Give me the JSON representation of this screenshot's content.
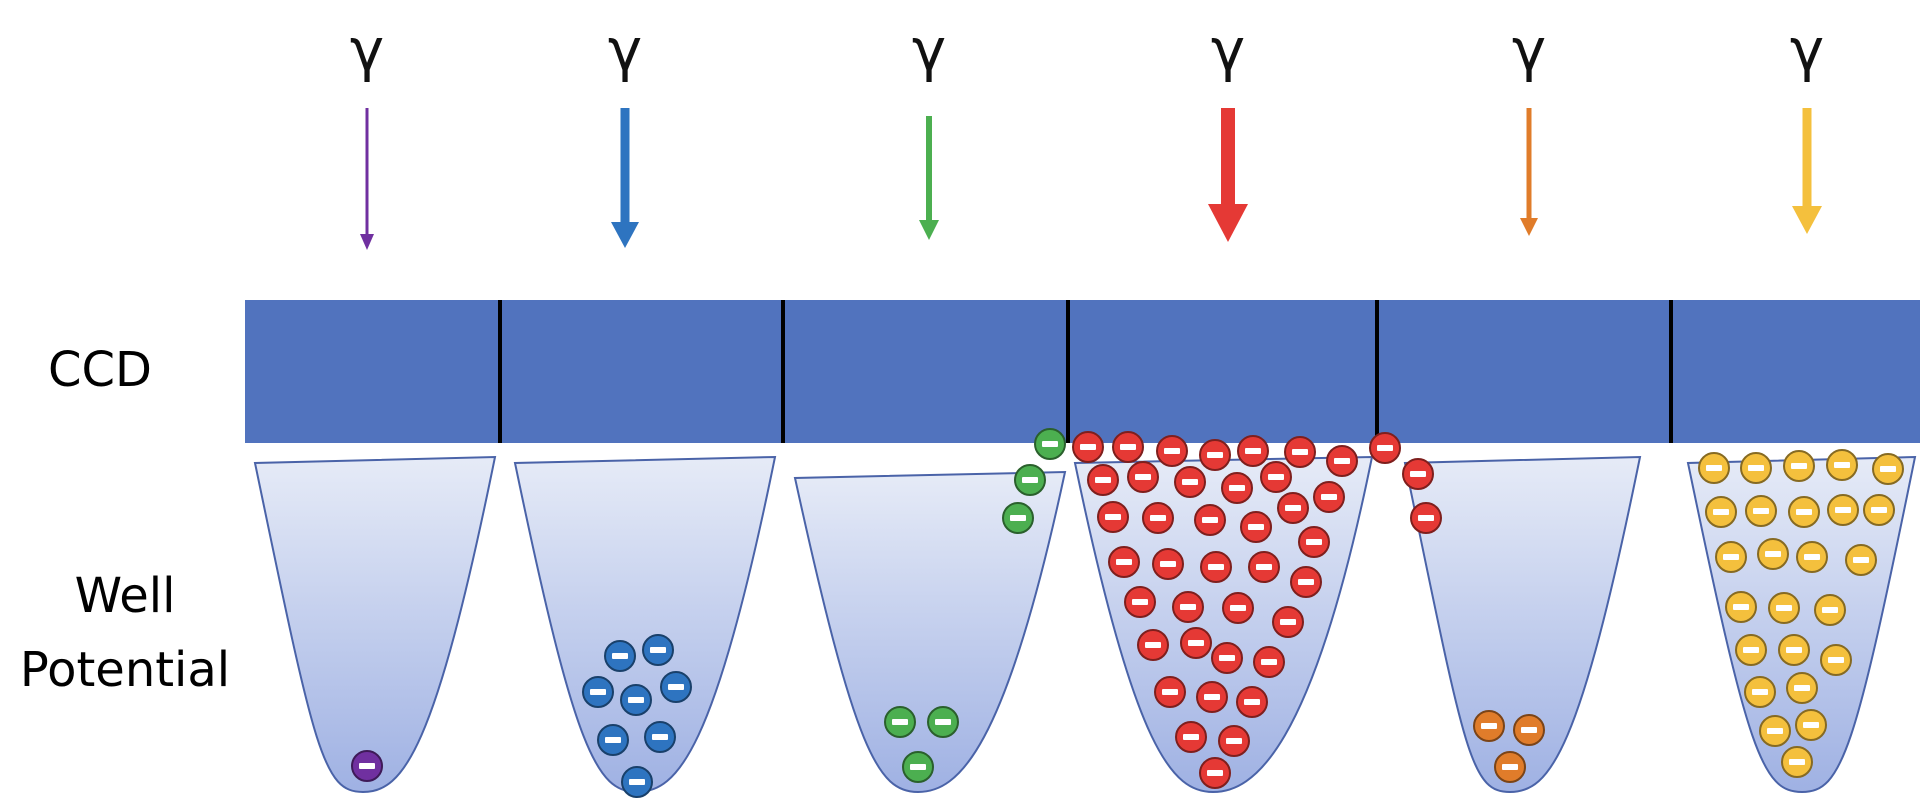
{
  "labels": {
    "ccd": "CCD",
    "well_line1": "Well",
    "well_line2": "Potential",
    "photon_symbol": "γ",
    "electron_symbol": "−"
  },
  "ccd_color": "#5173be",
  "pixels": [
    {
      "color": "#7030a0",
      "electrons": 1
    },
    {
      "color": "#2e74c0",
      "electrons": 9
    },
    {
      "color": "#4caf50",
      "electrons": 3
    },
    {
      "color": "#e53935",
      "electrons": 55
    },
    {
      "color": "#e07c2a",
      "electrons": 3
    },
    {
      "color": "#f4c03d",
      "electrons": 28
    }
  ]
}
